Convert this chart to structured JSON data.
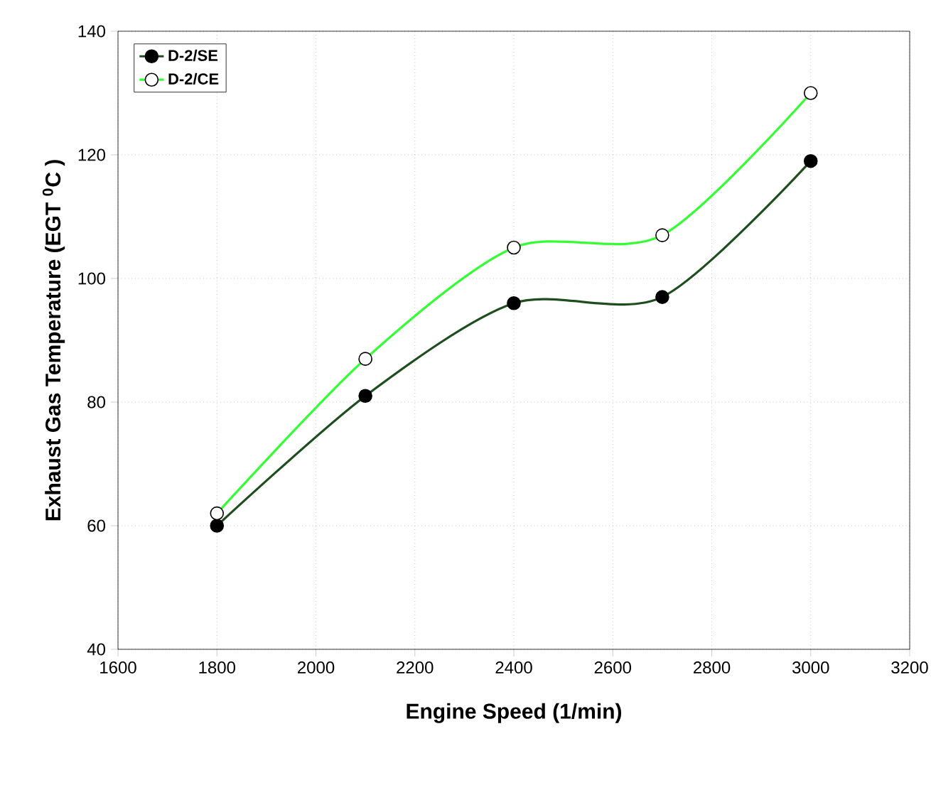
{
  "chart_data": {
    "type": "line",
    "xlabel": "Engine Speed (1/min)",
    "ylabel": "Exhaust Gas Temperature (EGT $^{0}$C )",
    "x": [
      1800,
      2100,
      2400,
      2700,
      3000
    ],
    "series": [
      {
        "name": "D-2/SE",
        "color": "#1e4d1e",
        "values": [
          60,
          81,
          96,
          97,
          119
        ]
      },
      {
        "name": "D-2/CE",
        "color": "#33ff33",
        "values": [
          62,
          87,
          105,
          107,
          130
        ]
      }
    ],
    "xlim": [
      1600,
      3200
    ],
    "xticks": [
      1600,
      1800,
      2000,
      2200,
      2400,
      2600,
      2800,
      3000,
      3200
    ],
    "ylim": [
      40,
      140
    ],
    "yticks": [
      40,
      60,
      80,
      100,
      120,
      140
    ],
    "grid": true,
    "legend": "top left",
    "marker": "circle",
    "line_style": "solid"
  }
}
